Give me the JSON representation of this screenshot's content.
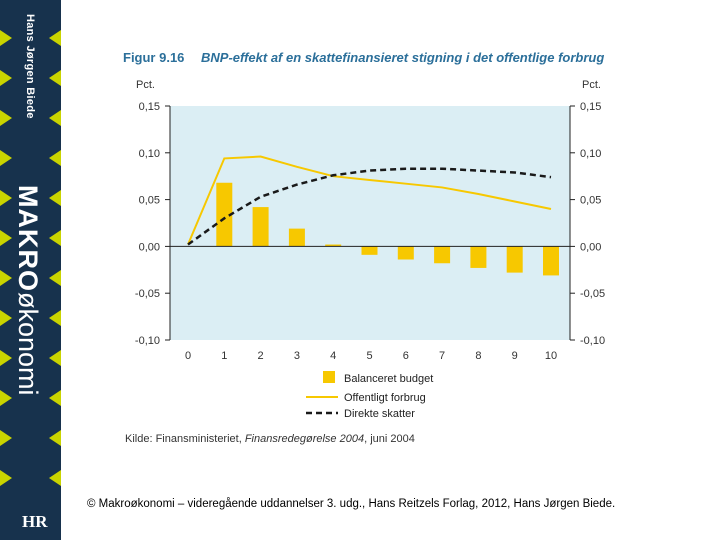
{
  "spine": {
    "author": "Hans Jørgen Biede",
    "title_bold": "MAKRO",
    "title_rest": "økonomi",
    "logo": "HR"
  },
  "colors": {
    "plot_bg": "#dbeef4",
    "bar": "#f7c800",
    "line": "#f7c800",
    "dashed": "#1a1a1a",
    "heading": "#2b6f9a",
    "spine": "#17324d",
    "spine_stripe": "#c9d400"
  },
  "chart_data": {
    "type": "bar",
    "figure_label": "Figur 9.16",
    "title": "BNP-effekt af en skattefinansieret stigning i det offentlige forbrug",
    "ylabel_left": "Pct.",
    "ylabel_right": "Pct.",
    "ylim": [
      -0.1,
      0.15
    ],
    "yticks": [
      "0,15",
      "0,10",
      "0,05",
      "0,00",
      "-0,05",
      "-0,10"
    ],
    "ytick_values": [
      0.15,
      0.1,
      0.05,
      0.0,
      -0.05,
      -0.1
    ],
    "x": [
      "0",
      "1",
      "2",
      "3",
      "4",
      "5",
      "6",
      "7",
      "8",
      "9",
      "10"
    ],
    "series": [
      {
        "name": "Balanceret budget",
        "kind": "bar",
        "values": [
          null,
          0.068,
          0.042,
          0.019,
          0.002,
          -0.009,
          -0.014,
          -0.018,
          -0.023,
          -0.028,
          -0.031
        ]
      },
      {
        "name": "Offentligt forbrug",
        "kind": "line",
        "values": [
          0.002,
          0.094,
          0.096,
          0.085,
          0.075,
          0.071,
          0.067,
          0.063,
          0.056,
          0.048,
          0.04
        ]
      },
      {
        "name": "Direkte skatter",
        "kind": "dashed",
        "values": [
          0.002,
          0.03,
          0.053,
          0.066,
          0.076,
          0.081,
          0.083,
          0.083,
          0.081,
          0.079,
          0.074
        ]
      }
    ],
    "legend": [
      "Balanceret budget",
      "Offentligt forbrug",
      "Direkte skatter"
    ],
    "source_prefix": "Kilde: Finansministeriet, ",
    "source_italic": "Finansredegørelse 2004",
    "source_suffix": ", juni 2004",
    "grid": false
  },
  "footer": {
    "copyright": "© Makroøkonomi – videregående uddannelser 3. udg., Hans Reitzels Forlag, 2012, Hans Jørgen Biede."
  }
}
